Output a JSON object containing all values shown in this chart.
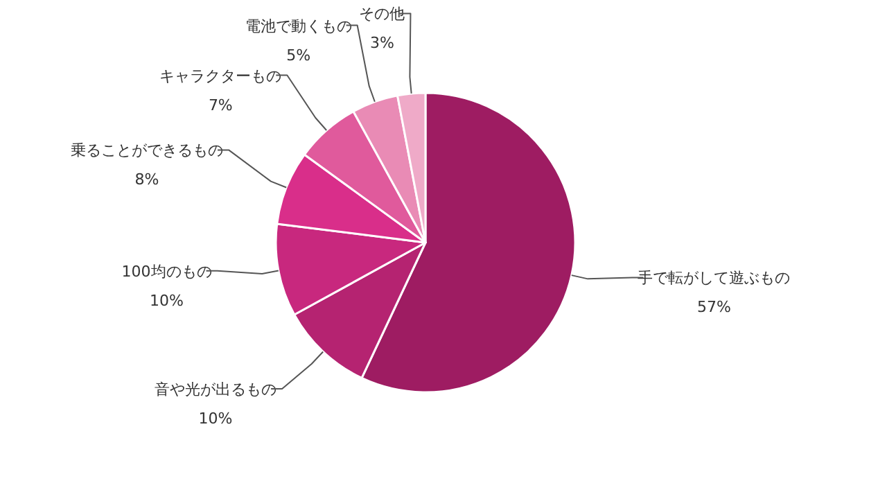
{
  "chart_data": {
    "type": "pie",
    "categories": [
      "手で転がして遊ぶもの",
      "音や光が出るもの",
      "100均のもの",
      "乗ることができるもの",
      "キャラクターもの",
      "電池で動くもの",
      "その他"
    ],
    "values": [
      57,
      10,
      10,
      8,
      7,
      5,
      3
    ],
    "colors": [
      "#9e1c62",
      "#b52371",
      "#c8287e",
      "#d92e8a",
      "#e05a9c",
      "#e98bb5",
      "#efaac8"
    ],
    "value_labels": [
      "57%",
      "10%",
      "10%",
      "8%",
      "7%",
      "5%",
      "3%"
    ]
  }
}
